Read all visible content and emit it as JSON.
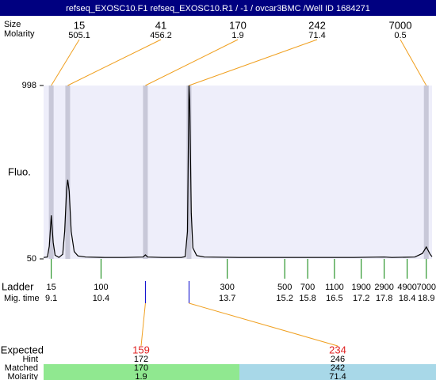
{
  "header": {
    "title": "refseq_EXOSC10.F1  refseq_EXOSC10.R1 / -1 / ovcar3BMC  /Well ID 1684271"
  },
  "chart_data": {
    "type": "line",
    "ylabel": "Fluo.",
    "ylim": [
      50,
      998
    ],
    "yticks": [
      50,
      998
    ],
    "xlim": [
      8.9,
      19.05
    ],
    "x": [
      8.9,
      9.0,
      9.05,
      9.1,
      9.15,
      9.2,
      9.3,
      9.4,
      9.45,
      9.5,
      9.53,
      9.57,
      9.62,
      9.7,
      9.8,
      10.0,
      10.5,
      11.0,
      11.5,
      11.56,
      11.62,
      12.0,
      12.5,
      12.6,
      12.66,
      12.7,
      12.72,
      12.76,
      12.8,
      12.9,
      13.1,
      14.0,
      15.0,
      16.0,
      17.0,
      17.8,
      18.0,
      18.6,
      18.8,
      18.9,
      19.0,
      19.05
    ],
    "series": [
      {
        "color": "#000000",
        "values": [
          58,
          60,
          120,
          288,
          140,
          70,
          58,
          75,
          200,
          430,
          483,
          420,
          200,
          90,
          66,
          60,
          58,
          58,
          60,
          72,
          60,
          58,
          58,
          62,
          200,
          998,
          900,
          300,
          110,
          68,
          60,
          58,
          58,
          58,
          58,
          60,
          58,
          60,
          80,
          115,
          75,
          62
        ]
      }
    ],
    "peak_row_labels": [
      "Size",
      "Molarity"
    ],
    "peaks": [
      {
        "size": 15,
        "molarity": 505.1,
        "time": 9.1
      },
      {
        "size": 41,
        "molarity": 456.2,
        "time": 9.53
      },
      {
        "size": 170,
        "molarity": 1.9,
        "time": 11.56
      },
      {
        "size": 242,
        "molarity": 71.4,
        "time": 12.7
      },
      {
        "size": 7000,
        "molarity": 0.5,
        "time": 18.9
      }
    ],
    "ladder": {
      "label": "Ladder",
      "time_label": "Mig. time",
      "sizes": [
        15,
        100,
        300,
        500,
        700,
        1100,
        1900,
        2900,
        4900,
        7000
      ],
      "times": [
        9.1,
        10.4,
        13.7,
        15.2,
        15.8,
        16.5,
        17.2,
        17.8,
        18.4,
        18.9
      ]
    },
    "results": {
      "row_labels": [
        "Expected",
        "Hint",
        "Matched",
        "Molarity"
      ],
      "expected": [
        159,
        234
      ],
      "hint": [
        172,
        246
      ],
      "matched": [
        170,
        242
      ],
      "molarity": [
        1.9,
        71.4
      ],
      "peak_index": [
        2,
        3
      ]
    }
  }
}
